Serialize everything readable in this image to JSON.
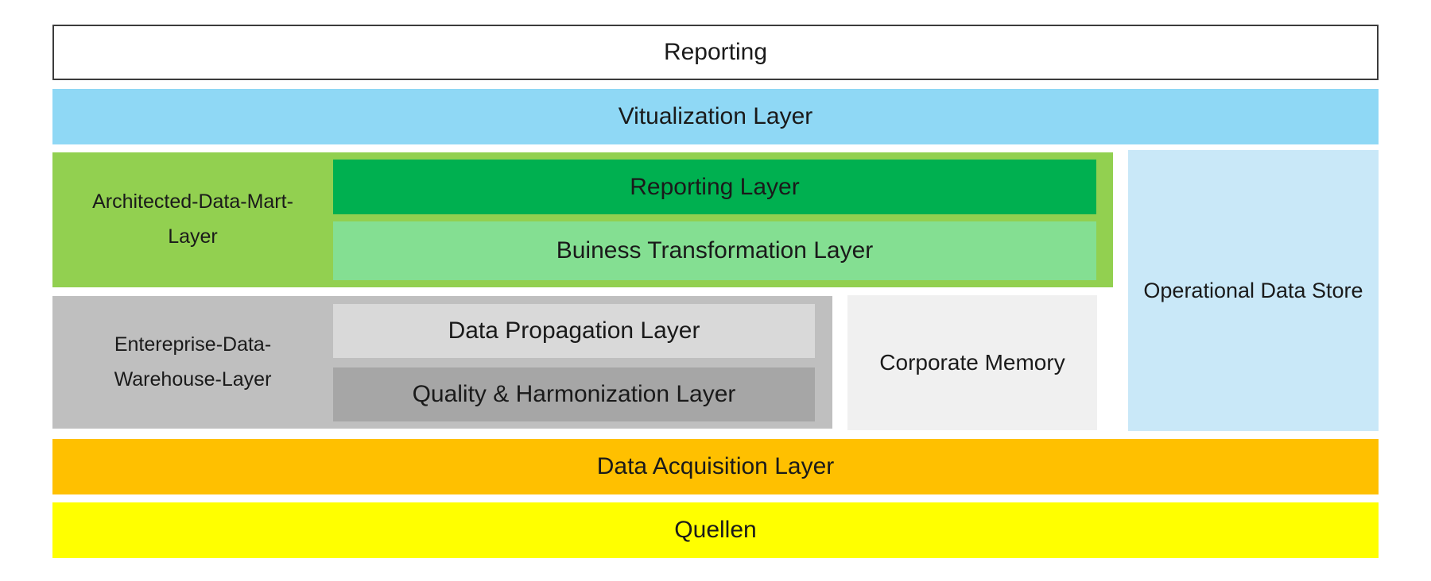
{
  "diagram": {
    "reporting": {
      "label": "Reporting",
      "color": "#FFFFFF",
      "border_color": "#3C3C3C"
    },
    "visualization": {
      "label": "Vitualization Layer",
      "color": "#8FD8F5"
    },
    "architected_data_mart": {
      "label_line1": "Architected-Data-Mart-",
      "label_line2": "Layer",
      "color": "#92D050",
      "children": {
        "reporting_layer": {
          "label": "Reporting Layer",
          "color": "#00B050"
        },
        "business_transformation_layer": {
          "label": "Buiness Transformation Layer",
          "color": "#84DF92"
        }
      }
    },
    "operational_data_store": {
      "label": "Operational Data Store",
      "color": "#C9E8F8"
    },
    "enterprise_data_warehouse": {
      "label_line1": "Entereprise-Data-",
      "label_line2": "Warehouse-Layer",
      "color": "#BFBFBF",
      "children": {
        "data_propagation_layer": {
          "label": "Data Propagation Layer",
          "color": "#D9D9D9"
        },
        "quality_harmonization_layer": {
          "label": "Quality & Harmonization Layer",
          "color": "#A6A6A6"
        }
      }
    },
    "corporate_memory": {
      "label": "Corporate Memory",
      "color": "#F0F0F0"
    },
    "data_acquisition": {
      "label": "Data Acquisition Layer",
      "color": "#FFC000"
    },
    "quellen": {
      "label": "Quellen",
      "color": "#FFFF00"
    },
    "text_color": "#1A1A1A"
  }
}
